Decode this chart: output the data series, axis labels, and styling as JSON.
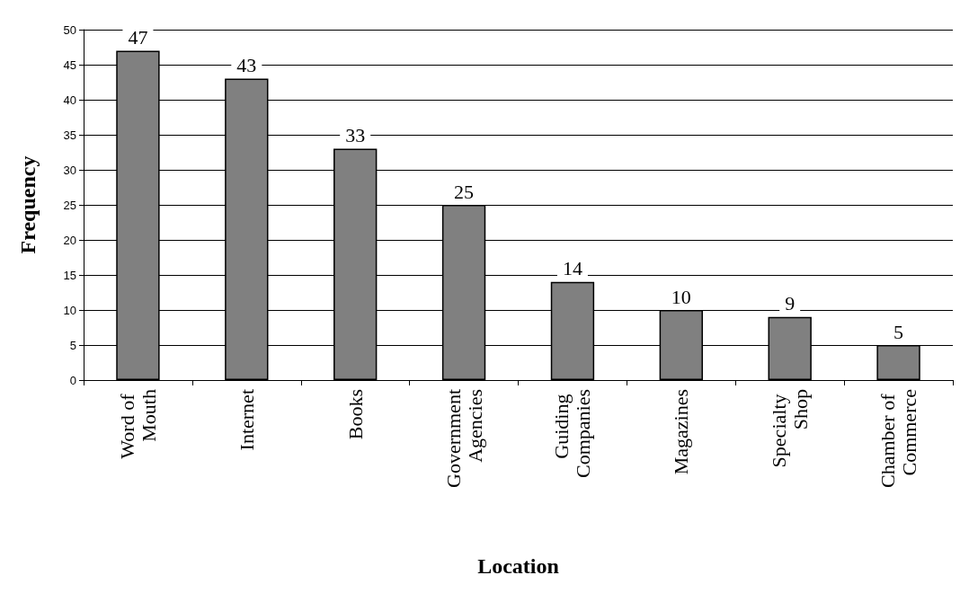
{
  "chart_data": {
    "type": "bar",
    "xlabel": "Location",
    "ylabel": "Frequency",
    "categories": [
      "Word of Mouth",
      "Internet",
      "Books",
      "Government Agencies",
      "Guiding Companies",
      "Magazines",
      "Specialty Shop",
      "Chamber of Commerce"
    ],
    "values": [
      47,
      43,
      33,
      25,
      14,
      10,
      9,
      5
    ],
    "color": "#808080",
    "ylim": [
      0,
      50
    ],
    "yticks": [
      0,
      5,
      10,
      15,
      20,
      25,
      30,
      35,
      40,
      45,
      50
    ],
    "grid": "y",
    "data_labels": true
  }
}
